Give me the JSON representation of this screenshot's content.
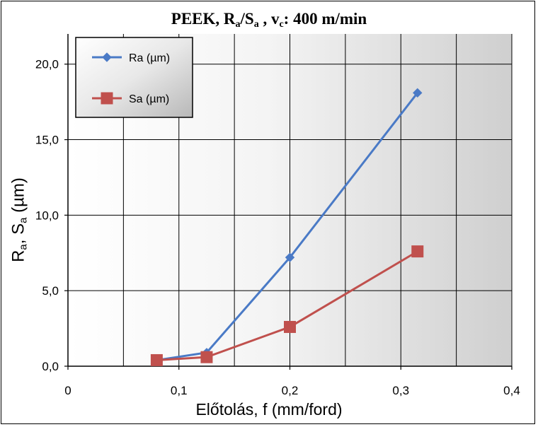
{
  "chart_data": {
    "type": "line",
    "title": "PEEK, Ra/Sa , vc: 400 m/min",
    "title_parts": [
      "PEEK, R",
      "a",
      "/S",
      "a",
      " , v",
      "c",
      ": 400 m/min"
    ],
    "xlabel": "Előtolás, f (mm/ford)",
    "ylabel": "Ra, Sa (µm)",
    "ylabel_parts": [
      "R",
      "a",
      ", S",
      "a",
      " (µm)"
    ],
    "xlim": [
      0,
      0.4
    ],
    "ylim": [
      0,
      20
    ],
    "x_ticks": [
      {
        "v": 0,
        "label": "0"
      },
      {
        "v": 0.1,
        "label": "0,1"
      },
      {
        "v": 0.2,
        "label": "0,2"
      },
      {
        "v": 0.3,
        "label": "0,3"
      },
      {
        "v": 0.4,
        "label": "0,4"
      }
    ],
    "y_ticks": [
      {
        "v": 0,
        "label": "0,0"
      },
      {
        "v": 5,
        "label": "5,0"
      },
      {
        "v": 10,
        "label": "10,0"
      },
      {
        "v": 15,
        "label": "15,0"
      },
      {
        "v": 20,
        "label": "20,0"
      }
    ],
    "x_grid_step": 0.05,
    "y_grid_step": 5,
    "grid": true,
    "legend_position": "top-left inside plot",
    "series": [
      {
        "name": "Ra (µm)",
        "color": "#4a7ac6",
        "marker": "diamond",
        "x": [
          0.08,
          0.125,
          0.2,
          0.315
        ],
        "y": [
          0.4,
          0.9,
          7.2,
          18.1
        ]
      },
      {
        "name": "Sa (µm)",
        "color": "#c0504d",
        "marker": "square",
        "x": [
          0.08,
          0.125,
          0.2,
          0.315
        ],
        "y": [
          0.4,
          0.6,
          2.6,
          7.6
        ]
      }
    ]
  }
}
